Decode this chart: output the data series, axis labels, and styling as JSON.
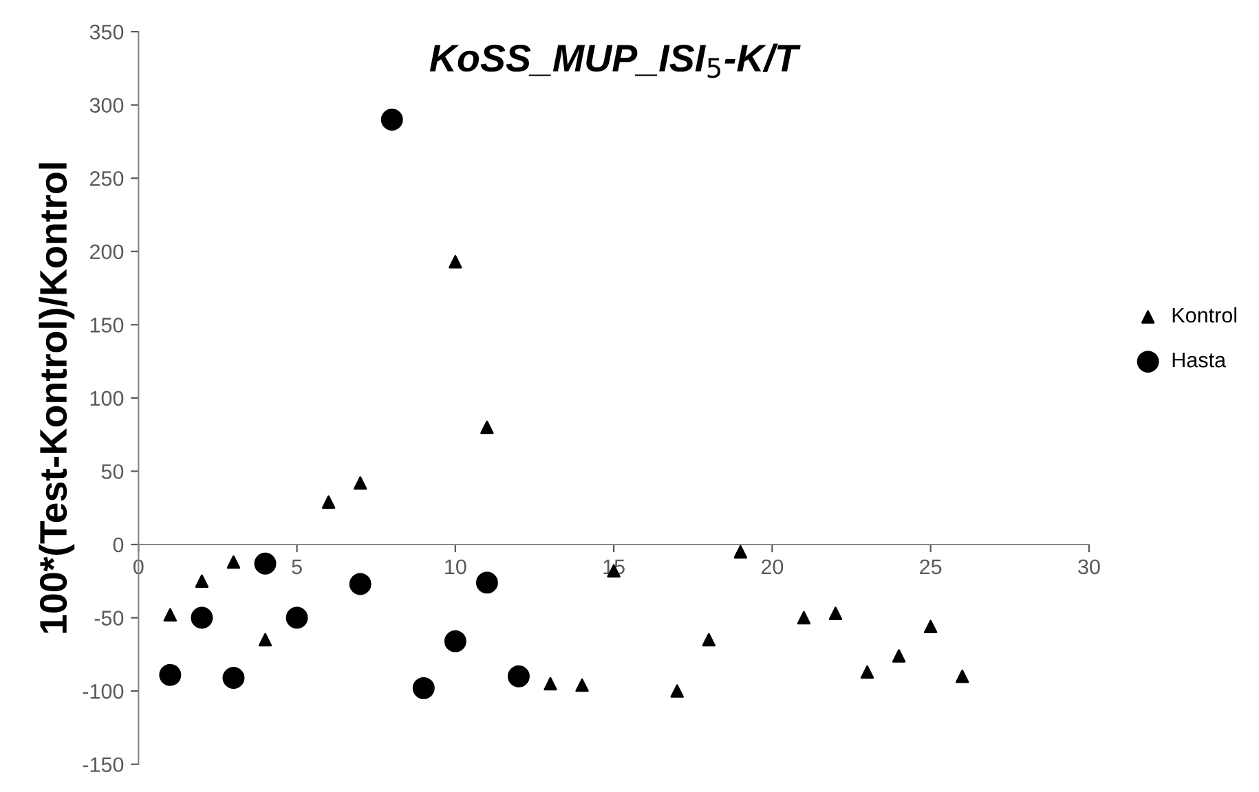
{
  "chart_data": {
    "type": "scatter",
    "title": "KoSS_MUP_ISI$_{5}$-K/T",
    "ylabel": "100*(Test-Kontrol)/Kontrol",
    "xlim": [
      0,
      30
    ],
    "xticks": [
      0,
      5,
      10,
      15,
      20,
      25,
      30
    ],
    "ylim": [
      -150,
      350
    ],
    "yticks": [
      -150,
      -100,
      -50,
      0,
      50,
      100,
      150,
      200,
      250,
      300,
      350
    ],
    "grid": false,
    "legend": "right",
    "series": [
      {
        "name": "Kontrol",
        "color": "#000000",
        "marker": "triangle",
        "x": [
          1,
          2,
          3,
          4,
          6,
          7,
          10,
          11,
          13,
          14,
          15,
          17,
          18,
          19,
          21,
          22,
          23,
          24,
          25,
          26
        ],
        "values": [
          -48,
          -25,
          -12,
          -65,
          29,
          42,
          193,
          80,
          -95,
          -96,
          -18,
          -100,
          -65,
          -5,
          -50,
          -47,
          -87,
          -76,
          -56,
          -90
        ]
      },
      {
        "name": "Hasta",
        "color": "#000000",
        "marker": "circle",
        "x": [
          1,
          2,
          3,
          4,
          5,
          7,
          8,
          9,
          10,
          11,
          12
        ],
        "values": [
          -89,
          -50,
          -91,
          -13,
          -50,
          -27,
          290,
          -98,
          -66,
          -26,
          -90
        ]
      }
    ]
  }
}
